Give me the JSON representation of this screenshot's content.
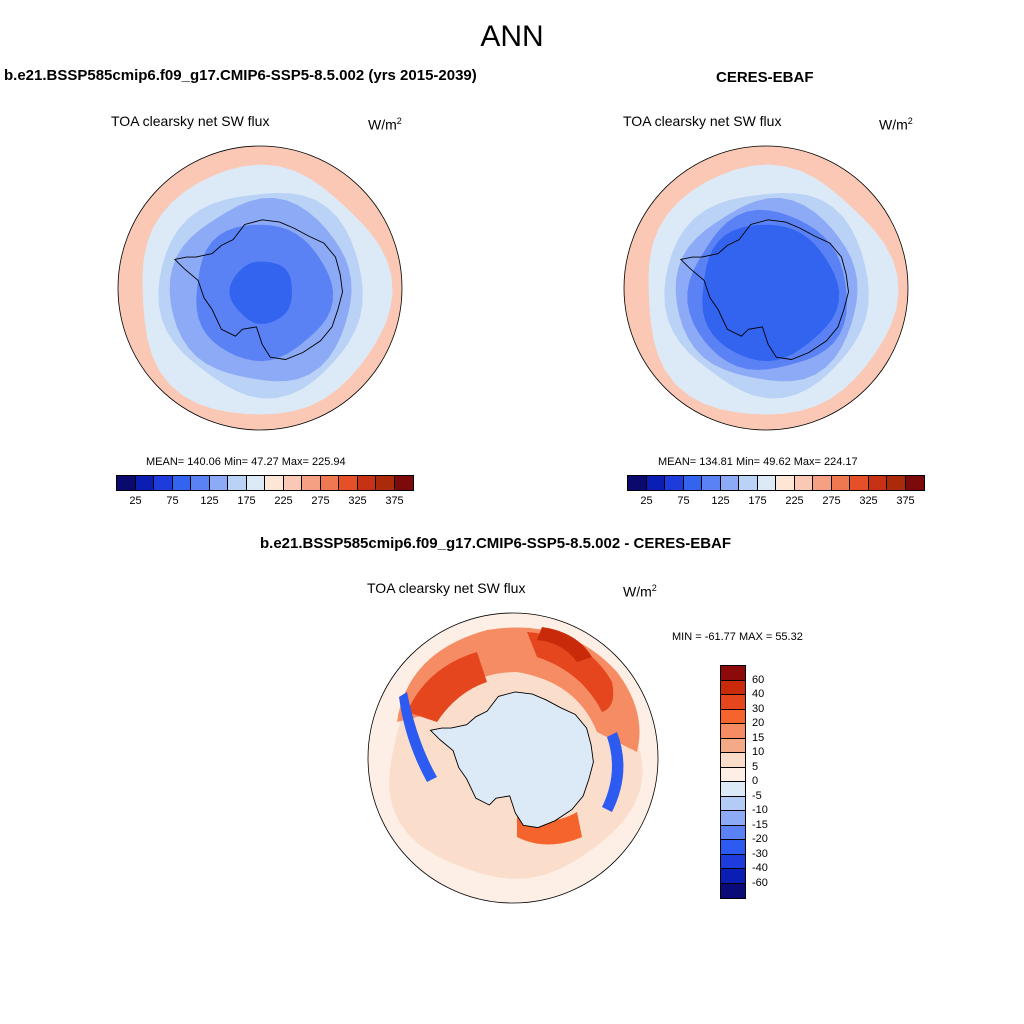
{
  "title": "ANN",
  "panels": [
    {
      "title": "b.e21.BSSP585cmip6.f09_g17.CMIP6-SSP5-8.5.002 (yrs 2015-2039)",
      "variable": "TOA clearsky net SW flux",
      "units": "W/m",
      "units_sup": "2",
      "stats": "MEAN= 140.06  Min=  47.27  Max= 225.94",
      "ring_levels": [
        230,
        190,
        175,
        160,
        145,
        130,
        115,
        100,
        80
      ]
    },
    {
      "title": "CERES-EBAF",
      "variable": "TOA clearsky net SW flux",
      "units": "W/m",
      "units_sup": "2",
      "stats": "MEAN= 134.81  Min=  49.62  Max= 224.17",
      "ring_levels": [
        230,
        190,
        175,
        150,
        125,
        110,
        95,
        80,
        75
      ]
    }
  ],
  "abs_colorbar": {
    "colors": [
      "#0a0a6e",
      "#0a1eb4",
      "#1e3cdc",
      "#3264f0",
      "#5a82f5",
      "#8caaf5",
      "#b9d2f5",
      "#dceaf8",
      "#fde6d6",
      "#fac8b4",
      "#f5a082",
      "#f07850",
      "#e65028",
      "#c83214",
      "#aa2a0a",
      "#7d0a0a"
    ],
    "tick_labels": [
      "25",
      "75",
      "125",
      "175",
      "225",
      "275",
      "325",
      "375"
    ]
  },
  "diff": {
    "title": "b.e21.BSSP585cmip6.f09_g17.CMIP6-SSP5-8.5.002 - CERES-EBAF",
    "variable": "TOA clearsky net SW flux",
    "units": "W/m",
    "units_sup": "2",
    "stats": "MIN = -61.77 MAX =  55.32"
  },
  "diff_colorbar": {
    "colors": [
      "#8c0a0a",
      "#c82a0a",
      "#e6461e",
      "#f5642d",
      "#f58c64",
      "#f5aa87",
      "#fadcc8",
      "#fdefe6",
      "#dceaf8",
      "#b4ccf5",
      "#8caaf5",
      "#5a82f5",
      "#2d5af0",
      "#1e3cdc",
      "#0a1eb4",
      "#0a0a78"
    ],
    "tick_labels": [
      "60",
      "40",
      "30",
      "20",
      "15",
      "10",
      "5",
      "0",
      "-5",
      "-10",
      "-15",
      "-20",
      "-30",
      "-40",
      "-60"
    ]
  }
}
